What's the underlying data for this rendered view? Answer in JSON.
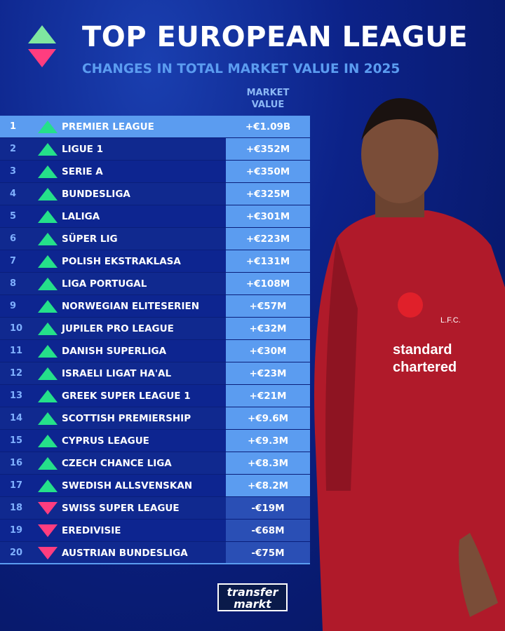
{
  "header": {
    "title": "TOP EUROPEAN LEAGUE",
    "subtitle": "CHANGES IN TOTAL MARKET VALUE IN 2025",
    "column_header_1": "MARKET",
    "column_header_2": "VALUE"
  },
  "colors": {
    "up": "#25e08a",
    "down": "#ff3d7f",
    "accent": "#5b9cf0",
    "background": "#0c2288"
  },
  "rows": [
    {
      "rank": "1",
      "trend": "up",
      "league": "PREMIER LEAGUE",
      "value": "+€1.09B"
    },
    {
      "rank": "2",
      "trend": "up",
      "league": "LIGUE 1",
      "value": "+€352M"
    },
    {
      "rank": "3",
      "trend": "up",
      "league": "SERIE A",
      "value": "+€350M"
    },
    {
      "rank": "4",
      "trend": "up",
      "league": "BUNDESLIGA",
      "value": "+€325M"
    },
    {
      "rank": "5",
      "trend": "up",
      "league": "LALIGA",
      "value": "+€301M"
    },
    {
      "rank": "6",
      "trend": "up",
      "league": "SÜPER LIG",
      "value": "+€223M"
    },
    {
      "rank": "7",
      "trend": "up",
      "league": "POLISH EKSTRAKLASA",
      "value": "+€131M"
    },
    {
      "rank": "8",
      "trend": "up",
      "league": "LIGA PORTUGAL",
      "value": "+€108M"
    },
    {
      "rank": "9",
      "trend": "up",
      "league": "NORWEGIAN ELITESERIEN",
      "value": "+€57M"
    },
    {
      "rank": "10",
      "trend": "up",
      "league": "JUPILER PRO LEAGUE",
      "value": "+€32M"
    },
    {
      "rank": "11",
      "trend": "up",
      "league": "DANISH SUPERLIGA",
      "value": "+€30M"
    },
    {
      "rank": "12",
      "trend": "up",
      "league": "ISRAELI LIGAT HA'AL",
      "value": "+€23M"
    },
    {
      "rank": "13",
      "trend": "up",
      "league": "GREEK SUPER LEAGUE 1",
      "value": "+€21M"
    },
    {
      "rank": "14",
      "trend": "up",
      "league": "SCOTTISH PREMIERSHIP",
      "value": "+€9.6M"
    },
    {
      "rank": "15",
      "trend": "up",
      "league": "CYPRUS LEAGUE",
      "value": "+€9.3M"
    },
    {
      "rank": "16",
      "trend": "up",
      "league": "CZECH CHANCE LIGA",
      "value": "+€8.3M"
    },
    {
      "rank": "17",
      "trend": "up",
      "league": "SWEDISH ALLSVENSKAN",
      "value": "+€8.2M"
    },
    {
      "rank": "18",
      "trend": "down",
      "league": "SWISS SUPER LEAGUE",
      "value": "-€19M"
    },
    {
      "rank": "19",
      "trend": "down",
      "league": "EREDIVISIE",
      "value": "-€68M"
    },
    {
      "rank": "20",
      "trend": "down",
      "league": "AUSTRIAN BUNDESLIGA",
      "value": "-€75M"
    }
  ],
  "brand": {
    "logo_line1": "transfer",
    "logo_line2": "markt"
  },
  "photo": {
    "sponsor_1": "standard",
    "sponsor_2": "chartered",
    "club_badge": "L.F.C."
  }
}
